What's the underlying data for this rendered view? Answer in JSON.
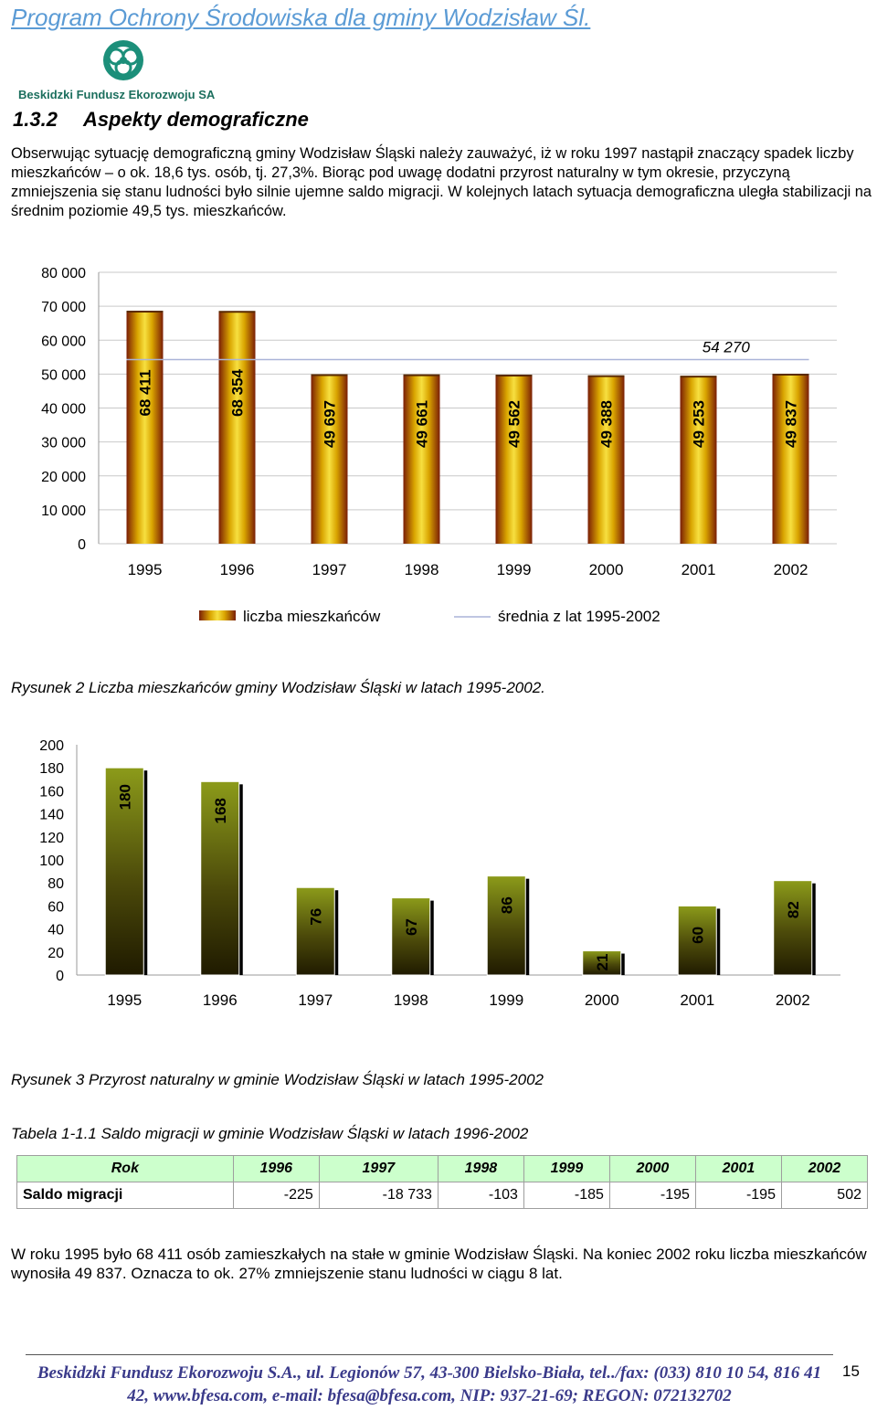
{
  "header": {
    "title": "Program Ochrony Środowiska dla gminy Wodzisław Śl."
  },
  "logo": {
    "text": "Beskidzki Fundusz Ekorozwoju SA"
  },
  "section": {
    "number": "1.3.2",
    "title": "Aspekty demograficzne"
  },
  "paragraph1": "Obserwując sytuację demograficzną gminy Wodzisław Śląski należy zauważyć, iż w roku 1997 nastąpił znaczący spadek liczby mieszkańców – o ok. 18,6 tys. osób, tj. 27,3%. Biorąc pod uwagę dodatni przyrost naturalny w tym okresie, przyczyną zmniejszenia się stanu ludności było silnie ujemne saldo migracji. W kolejnych latach sytuacja demograficzna uległa stabilizacji na średnim poziomie 49,5 tys. mieszkańców.",
  "chart_data": [
    {
      "type": "bar",
      "categories": [
        "1995",
        "1996",
        "1997",
        "1998",
        "1999",
        "2000",
        "2001",
        "2002"
      ],
      "series": [
        {
          "name": "liczba mieszkańców",
          "values": [
            68411,
            68354,
            49697,
            49661,
            49562,
            49388,
            49253,
            49837
          ],
          "labels": [
            "68 411",
            "68 354",
            "49 697",
            "49 661",
            "49 562",
            "49 388",
            "49 253",
            "49 837"
          ]
        },
        {
          "name": "średnia z lat 1995-2002",
          "type": "line",
          "value": 54270,
          "label": "54 270"
        }
      ],
      "yticks": [
        0,
        10000,
        20000,
        30000,
        40000,
        50000,
        60000,
        70000,
        80000
      ],
      "ytick_labels": [
        "0",
        "10 000",
        "20 000",
        "30 000",
        "40 000",
        "50 000",
        "60 000",
        "70 000",
        "80 000"
      ],
      "ylim": [
        0,
        80000
      ],
      "legend": "bottom",
      "grid": true,
      "colors": {
        "bar_top": "#f2d72a",
        "bar_mid": "#f5d000",
        "bar_dark": "#7a1e06",
        "average": "#aab4d8"
      }
    },
    {
      "type": "bar",
      "categories": [
        "1995",
        "1996",
        "1997",
        "1998",
        "1999",
        "2000",
        "2001",
        "2002"
      ],
      "series": [
        {
          "values": [
            180,
            168,
            76,
            67,
            86,
            21,
            60,
            82
          ],
          "labels": [
            "180",
            "168",
            "76",
            "67",
            "86",
            "21",
            "60",
            "82"
          ]
        }
      ],
      "yticks": [
        0,
        20,
        40,
        60,
        80,
        100,
        120,
        140,
        160,
        180,
        200
      ],
      "ytick_labels": [
        "0",
        "20",
        "40",
        "60",
        "80",
        "100",
        "120",
        "140",
        "160",
        "180",
        "200"
      ],
      "ylim": [
        0,
        200
      ],
      "grid": false,
      "colors": {
        "bar_top": "#8c9b1a",
        "bar_bottom": "#2a2400",
        "shadow": "#000000"
      }
    }
  ],
  "captions": {
    "figure2": "Rysunek 2 Liczba mieszkańców gminy Wodzisław Śląski w latach 1995-2002.",
    "figure3": "Rysunek 3 Przyrost naturalny w gminie Wodzisław Śląski w latach 1995-2002",
    "table": "Tabela 1-1.1 Saldo migracji w gminie Wodzisław Śląski w latach 1996-2002"
  },
  "table": {
    "header": [
      "Rok",
      "1996",
      "1997",
      "1998",
      "1999",
      "2000",
      "2001",
      "2002"
    ],
    "row_label": "Saldo migracji",
    "values": [
      "-225",
      "-18 733",
      "-103",
      "-185",
      "-195",
      "-195",
      "502"
    ]
  },
  "paragraph2": "W roku 1995 było 68 411 osób zamieszkałych na stałe w gminie Wodzisław Śląski. Na koniec 2002 roku liczba mieszkańców wynosiła 49 837. Oznacza to ok. 27% zmniejszenie stanu ludności w ciągu 8 lat.",
  "footer": {
    "line1": "Beskidzki Fundusz Ekorozwoju S.A., ul. Legionów 57, 43-300 Bielsko-Biała, tel../fax: (033) 810 10 54, 816 41",
    "line2": "42, www.bfesa.com, e-mail: bfesa@bfesa.com, NIP: 937-21-69; REGON: 072132702",
    "page": "15"
  }
}
